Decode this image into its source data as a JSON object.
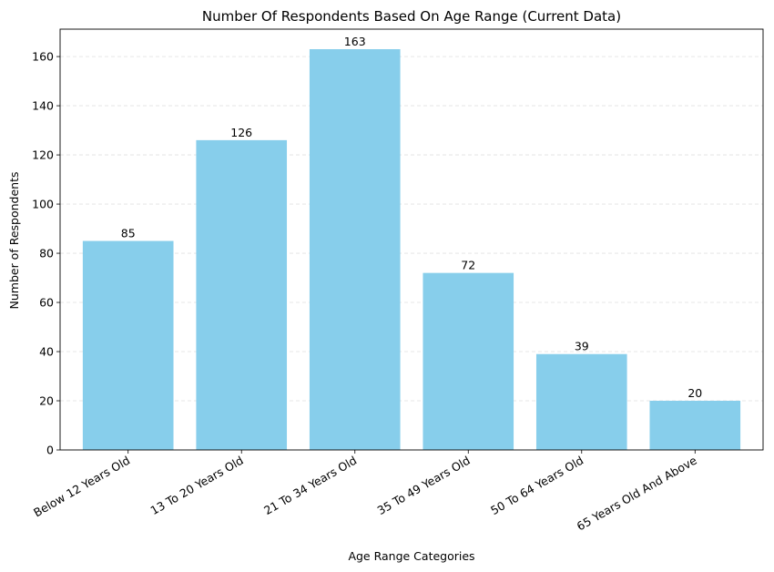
{
  "chart_data": {
    "type": "bar",
    "title": "Number Of Respondents Based On Age Range (Current Data)",
    "xlabel": "Age Range Categories",
    "ylabel": "Number of Respondents",
    "categories": [
      "Below 12 Years Old",
      "13 To 20 Years Old",
      "21 To 34 Years Old",
      "35 To 49 Years Old",
      "50 To 64 Years Old",
      "65 Years Old And Above"
    ],
    "values": [
      85,
      126,
      163,
      72,
      39,
      20
    ],
    "ylim": [
      0,
      171.15
    ],
    "yticks": [
      0,
      20,
      40,
      60,
      80,
      100,
      120,
      140,
      160
    ],
    "grid": "y-dashed",
    "bar_color": "#87ceeb",
    "grid_color": "#e0e0e0"
  }
}
